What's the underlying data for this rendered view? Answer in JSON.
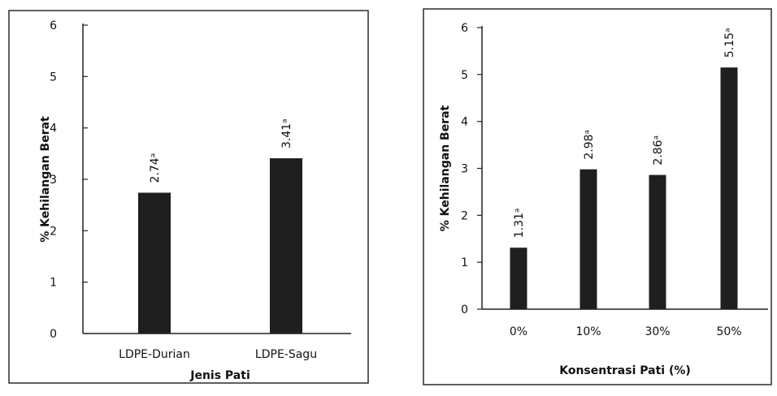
{
  "chart_data": [
    {
      "type": "bar",
      "categories": [
        "LDPE-Durian",
        "LDPE-Sagu"
      ],
      "values": [
        2.74,
        3.41
      ],
      "data_labels": [
        "2.74ᵃ",
        "3.41ᵃ"
      ],
      "xlabel": "Jenis Pati",
      "ylabel": "% Kehilangan Berat",
      "ylim": [
        0,
        6
      ],
      "yticks": [
        "0",
        "1",
        "2",
        "3",
        "4",
        "5",
        "6"
      ],
      "grid": false,
      "bar_color": "#1f1f1f"
    },
    {
      "type": "bar",
      "categories": [
        "0%",
        "10%",
        "30%",
        "50%"
      ],
      "values": [
        1.31,
        2.98,
        2.86,
        5.15
      ],
      "data_labels": [
        "1.31ᵃ",
        "2.98ᵃ",
        "2.86ᵃ",
        "5.15ᵃ"
      ],
      "xlabel": "Konsentrasi Pati (%)",
      "ylabel": "% Kehilangan Berat",
      "ylim": [
        0,
        6
      ],
      "yticks": [
        "0",
        "1",
        "2",
        "3",
        "4",
        "5",
        "6"
      ],
      "grid": false,
      "bar_color": "#1f1f1f"
    }
  ]
}
